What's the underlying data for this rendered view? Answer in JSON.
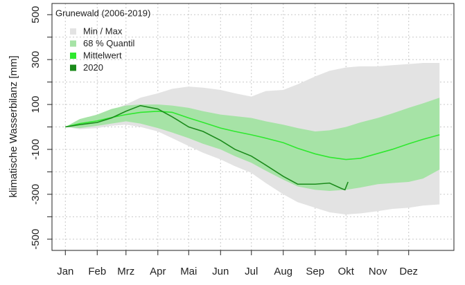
{
  "chart_data": {
    "type": "band-line",
    "y_label": "klimatische Wasserbilanz [mm]",
    "legend_title": "Grunewald (2006-2019)",
    "legend": "top-left",
    "grid": true,
    "xlim": [
      -12,
      379
    ],
    "ylim": [
      -550,
      550
    ],
    "xticks": [
      {
        "value": 1,
        "label": "Jan"
      },
      {
        "value": 32,
        "label": "Feb"
      },
      {
        "value": 60,
        "label": "Mrz"
      },
      {
        "value": 91,
        "label": "Apr"
      },
      {
        "value": 121,
        "label": "Mai"
      },
      {
        "value": 152,
        "label": "Jun"
      },
      {
        "value": 182,
        "label": "Jul"
      },
      {
        "value": 213,
        "label": "Aug"
      },
      {
        "value": 244,
        "label": "Sep"
      },
      {
        "value": 274,
        "label": "Okt"
      },
      {
        "value": 305,
        "label": "Nov"
      },
      {
        "value": 335,
        "label": "Dez"
      }
    ],
    "yticks": [
      -500,
      -300,
      -100,
      100,
      300,
      500
    ],
    "yminor_ticks": [
      -400,
      -200,
      0,
      200,
      400
    ],
    "x": [
      1,
      15,
      32,
      46,
      60,
      74,
      91,
      105,
      121,
      135,
      152,
      166,
      182,
      196,
      213,
      227,
      244,
      258,
      274,
      288,
      305,
      319,
      335,
      349,
      365
    ],
    "series": [
      {
        "name": "Min / Max",
        "kind": "band",
        "color": "#e3e3e3",
        "upper": [
          0,
          25,
          45,
          75,
          100,
          130,
          150,
          170,
          180,
          175,
          165,
          150,
          135,
          160,
          165,
          190,
          225,
          250,
          265,
          270,
          270,
          275,
          280,
          285,
          285
        ],
        "lower": [
          0,
          -10,
          -5,
          5,
          10,
          0,
          -20,
          -50,
          -85,
          -115,
          -145,
          -175,
          -205,
          -250,
          -300,
          -335,
          -360,
          -380,
          -390,
          -385,
          -375,
          -365,
          -360,
          -350,
          -345
        ]
      },
      {
        "name": "68 % Quantil",
        "kind": "band",
        "color": "#a6e3a6",
        "upper": [
          0,
          35,
          55,
          80,
          95,
          100,
          100,
          95,
          85,
          70,
          55,
          48,
          40,
          25,
          10,
          -5,
          -20,
          -15,
          0,
          20,
          40,
          60,
          85,
          105,
          130
        ],
        "lower": [
          0,
          -5,
          5,
          15,
          25,
          15,
          -5,
          -25,
          -50,
          -75,
          -100,
          -130,
          -160,
          -195,
          -235,
          -265,
          -280,
          -285,
          -280,
          -270,
          -255,
          -250,
          -245,
          -230,
          -190
        ]
      },
      {
        "name": "Mittelwert",
        "kind": "line",
        "color": "#2ee82e",
        "values": [
          0,
          15,
          27,
          42,
          55,
          65,
          70,
          65,
          40,
          20,
          -5,
          -20,
          -35,
          -50,
          -70,
          -95,
          -120,
          -135,
          -145,
          -140,
          -118,
          -100,
          -75,
          -55,
          -35
        ]
      },
      {
        "name": "2020",
        "kind": "line",
        "color": "#1a8a1a",
        "x": [
          1,
          15,
          32,
          46,
          60,
          74,
          91,
          105,
          121,
          135,
          152,
          166,
          182,
          196,
          213,
          227,
          244,
          258,
          270,
          273,
          276
        ],
        "values": [
          0,
          10,
          20,
          40,
          70,
          95,
          80,
          45,
          0,
          -20,
          -60,
          -100,
          -130,
          -170,
          -220,
          -255,
          -255,
          -250,
          -275,
          -280,
          -245
        ]
      }
    ]
  }
}
